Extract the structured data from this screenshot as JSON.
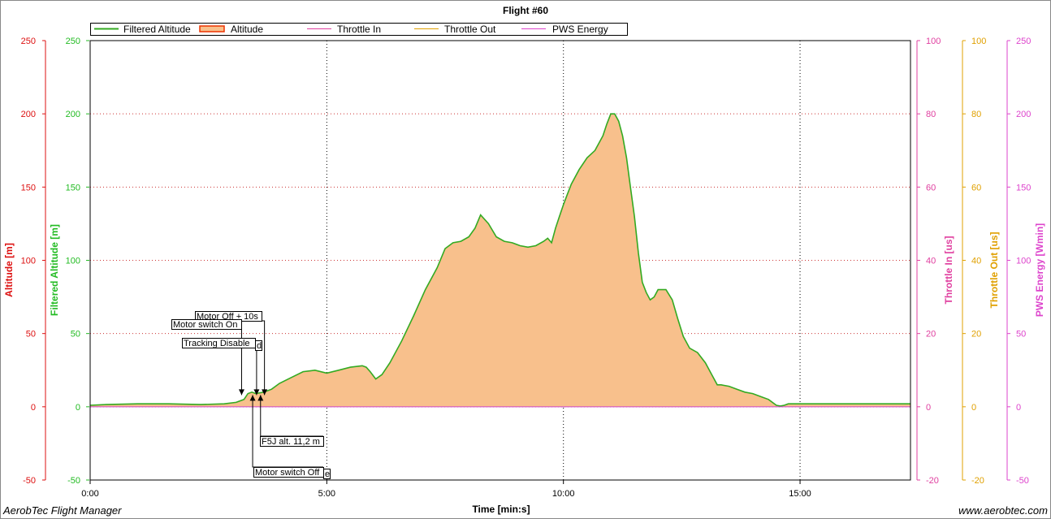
{
  "colors": {
    "altitude_axis": "#dd1111",
    "filtered_axis": "#22bb22",
    "throttle_in_axis": "#e040a0",
    "throttle_out_axis": "#e0a000",
    "pws_axis": "#dd44cc",
    "area_fill": "#f8c08c",
    "filtered_line": "#33aa22",
    "grid": "#cc3333"
  },
  "footer": {
    "left": "AerobTec Flight Manager",
    "right": "www.aerobtec.com"
  },
  "chart_data": {
    "type": "area",
    "title": "Flight #60",
    "xlabel": "Time [min:s]",
    "x_ticks": [
      "0:00",
      "5:00",
      "10:00",
      "15:00"
    ],
    "x_tick_seconds": [
      0,
      300,
      600,
      900
    ],
    "xlim": [
      0,
      1040
    ],
    "legend": {
      "placement": "top",
      "entries": [
        "Filtered Altitude",
        "Altitude",
        "Throttle In",
        "Throttle Out",
        "PWS Energy"
      ]
    },
    "axes": [
      {
        "name": "Altitude",
        "label": "Altitude [m]",
        "range": [
          -50,
          250
        ],
        "ticks": [
          "250",
          "200",
          "150",
          "100",
          "50",
          "0",
          "-50"
        ],
        "side": "left"
      },
      {
        "name": "Filtered Altitude",
        "label": "Filtered Altitude [m]",
        "range": [
          -50,
          250
        ],
        "ticks": [
          "250",
          "200",
          "150",
          "100",
          "50",
          "0",
          "-50"
        ],
        "side": "left"
      },
      {
        "name": "Throttle In",
        "label": "Throttle In [us]",
        "range": [
          -20,
          100
        ],
        "ticks": [
          "100",
          "80",
          "60",
          "40",
          "20",
          "0",
          "-20"
        ],
        "side": "right"
      },
      {
        "name": "Throttle Out",
        "label": "Throttle Out [us]",
        "range": [
          -20,
          100
        ],
        "ticks": [
          "100",
          "80",
          "60",
          "40",
          "20",
          "0",
          "-20"
        ],
        "side": "right"
      },
      {
        "name": "PWS Energy",
        "label": "PWS Energy [Wmin]",
        "range": [
          -50,
          250
        ],
        "ticks": [
          "250",
          "200",
          "150",
          "100",
          "50",
          "0",
          "-50"
        ],
        "side": "right"
      }
    ],
    "grid": true,
    "series": [
      {
        "name": "Filtered Altitude",
        "x": [
          0,
          20,
          60,
          100,
          140,
          170,
          185,
          195,
          200,
          205,
          210,
          220,
          230,
          240,
          255,
          270,
          285,
          300,
          315,
          330,
          345,
          350,
          355,
          362,
          370,
          380,
          395,
          410,
          425,
          440,
          450,
          460,
          470,
          480,
          488,
          495,
          505,
          515,
          525,
          535,
          545,
          555,
          565,
          575,
          580,
          585,
          590,
          595,
          600,
          605,
          610,
          620,
          630,
          640,
          650,
          655,
          660,
          665,
          670,
          675,
          680,
          685,
          690,
          695,
          700,
          705,
          710,
          715,
          720,
          730,
          738,
          745,
          752,
          760,
          770,
          780,
          788,
          795,
          800,
          810,
          820,
          830,
          840,
          850,
          860,
          870,
          875,
          880,
          885,
          895,
          905,
          915,
          925,
          935,
          945,
          960,
          975,
          990,
          1005,
          1020,
          1040
        ],
        "values": [
          1,
          1.5,
          2,
          2,
          1.5,
          2,
          3,
          5,
          9,
          10,
          9,
          10,
          12,
          16,
          20,
          24,
          25,
          23,
          25,
          27,
          28,
          27,
          24,
          19,
          22,
          30,
          45,
          62,
          80,
          95,
          108,
          112,
          113,
          116,
          122,
          131,
          125,
          116,
          113,
          112,
          110,
          109,
          110,
          113,
          115,
          112,
          122,
          130,
          138,
          145,
          152,
          162,
          170,
          175,
          185,
          193,
          200,
          200,
          195,
          185,
          170,
          150,
          130,
          105,
          85,
          78,
          73,
          75,
          80,
          80,
          73,
          60,
          48,
          40,
          37,
          30,
          22,
          15,
          15,
          14,
          12,
          10,
          9,
          7,
          5,
          1,
          0.5,
          1,
          2,
          2,
          2,
          2,
          2,
          2,
          2,
          2,
          2,
          2,
          2,
          2,
          2
        ],
        "color": "#33aa22"
      },
      {
        "name": "Altitude",
        "x": [
          0,
          20,
          60,
          100,
          140,
          170,
          185,
          195,
          200,
          205,
          210,
          220,
          230,
          240,
          255,
          270,
          285,
          300,
          315,
          330,
          345,
          350,
          355,
          362,
          370,
          380,
          395,
          410,
          425,
          440,
          450,
          460,
          470,
          480,
          488,
          495,
          505,
          515,
          525,
          535,
          545,
          555,
          565,
          575,
          580,
          585,
          590,
          595,
          600,
          605,
          610,
          620,
          630,
          640,
          650,
          655,
          660,
          665,
          670,
          675,
          680,
          685,
          690,
          695,
          700,
          705,
          710,
          715,
          720,
          730,
          738,
          745,
          752,
          760,
          770,
          780,
          788,
          795,
          800,
          810,
          820,
          830,
          840,
          850,
          860,
          870,
          875,
          880,
          885,
          895,
          905,
          915,
          925,
          935,
          945,
          960,
          975,
          990,
          1005,
          1020,
          1040
        ],
        "values": [
          1,
          1.5,
          2,
          2,
          1.5,
          2,
          3,
          5,
          9,
          10,
          9,
          10,
          12,
          16,
          20,
          24,
          25,
          23,
          25,
          27,
          28,
          27,
          24,
          19,
          22,
          30,
          45,
          62,
          80,
          95,
          108,
          112,
          113,
          116,
          122,
          131,
          125,
          116,
          113,
          112,
          110,
          109,
          110,
          113,
          115,
          112,
          122,
          130,
          138,
          145,
          152,
          162,
          170,
          175,
          185,
          193,
          200,
          200,
          195,
          185,
          170,
          150,
          130,
          105,
          85,
          78,
          73,
          75,
          80,
          80,
          73,
          60,
          48,
          40,
          37,
          30,
          22,
          15,
          15,
          14,
          12,
          10,
          9,
          7,
          5,
          1,
          0.5,
          1,
          2,
          2,
          2,
          2,
          2,
          2,
          2,
          2,
          2,
          2,
          2,
          2,
          2
        ],
        "color": "#f8c08c"
      }
    ],
    "annotations": [
      {
        "text": "Motor Off + 10s",
        "t": 221,
        "placement": "above"
      },
      {
        "text": "Motor switch On",
        "t": 192,
        "placement": "above"
      },
      {
        "text": "Tracking Disable",
        "t": 211,
        "placement": "above"
      },
      {
        "text": "d",
        "t": 211,
        "placement": "above"
      },
      {
        "text": "F5J alt. 11,2 m",
        "t": 216,
        "placement": "below"
      },
      {
        "text": "Motor switch Off",
        "t": 206,
        "placement": "below"
      },
      {
        "text": "e",
        "t": 221,
        "placement": "below"
      }
    ]
  }
}
